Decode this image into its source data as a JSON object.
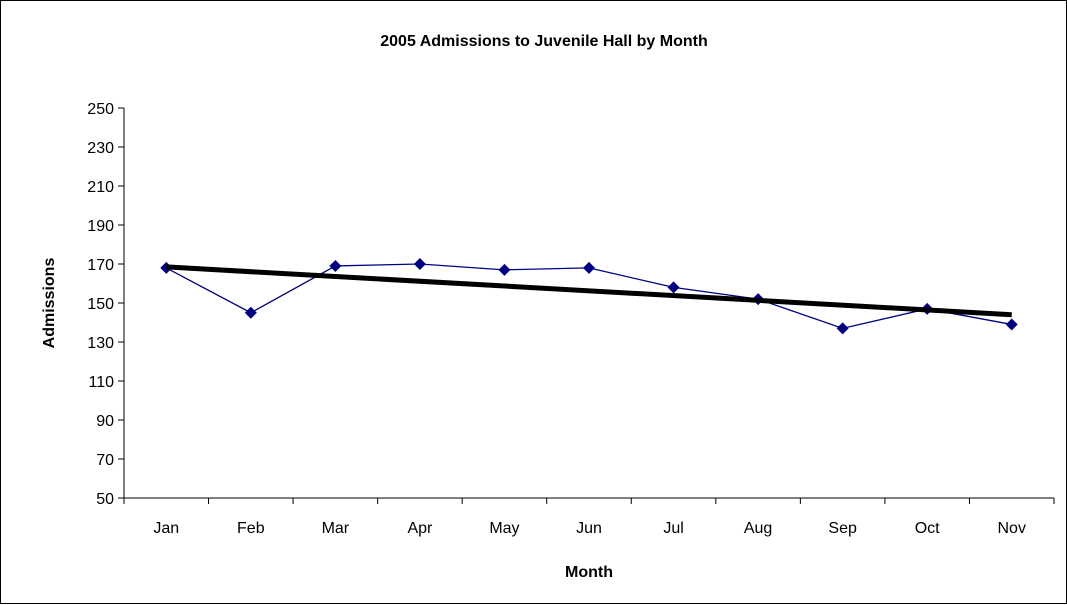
{
  "chart_data": {
    "type": "line",
    "title": "2005 Admissions to Juvenile Hall by Month",
    "xlabel": "Month",
    "ylabel": "Admissions",
    "categories": [
      "Jan",
      "Feb",
      "Mar",
      "Apr",
      "May",
      "Jun",
      "Jul",
      "Aug",
      "Sep",
      "Oct",
      "Nov"
    ],
    "series": [
      {
        "values": [
          168,
          145,
          169,
          170,
          167,
          168,
          158,
          152,
          137,
          147,
          139
        ],
        "color": "#000080",
        "marker": "diamond"
      }
    ],
    "trendline": {
      "type": "linear",
      "start": 168.5,
      "end": 144,
      "color": "#000000"
    },
    "ylim": [
      50,
      250
    ],
    "yticks": [
      50,
      70,
      90,
      110,
      130,
      150,
      170,
      190,
      210,
      230,
      250
    ],
    "grid": false,
    "legend": "none"
  }
}
